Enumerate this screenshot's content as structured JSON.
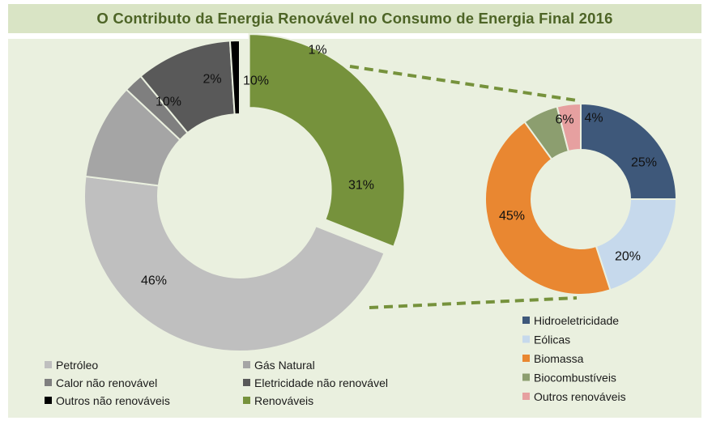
{
  "chart_data": [
    {
      "type": "pie",
      "title": "O Contributo da Energia Renovável no Consumo de Energia Final 2016",
      "categories": [
        "Renováveis",
        "Petróleo",
        "Gás Natural",
        "Calor não renovável",
        "Eletricidade não renovável",
        "Outros não renováveis"
      ],
      "values": [
        31,
        46,
        10,
        2,
        10,
        1
      ],
      "labels": [
        "31%",
        "46%",
        "10%",
        "2%",
        "10%",
        "1%"
      ],
      "colors": [
        "#76923c",
        "#bfbfbf",
        "#a5a5a5",
        "#7f7f7f",
        "#595959",
        "#000000"
      ],
      "legend": [
        {
          "name": "Petróleo",
          "color": "#bfbfbf"
        },
        {
          "name": "Gás Natural",
          "color": "#a5a5a5"
        },
        {
          "name": "Calor não renovável",
          "color": "#7f7f7f"
        },
        {
          "name": "Eletricidade não renovável",
          "color": "#595959"
        },
        {
          "name": "Outros não renováveis",
          "color": "#000000"
        },
        {
          "name": "Renováveis",
          "color": "#76923c"
        }
      ]
    },
    {
      "type": "pie",
      "categories": [
        "Hidroeletricidade",
        "Eólicas",
        "Biomassa",
        "Biocombustíveis",
        "Outros renováveis"
      ],
      "values": [
        25,
        20,
        45,
        6,
        4
      ],
      "labels": [
        "25%",
        "20%",
        "45%",
        "6%",
        "4%"
      ],
      "colors": [
        "#3e587a",
        "#c6d9ec",
        "#e98731",
        "#8c9e6f",
        "#e6a0a0"
      ],
      "legend": [
        {
          "name": "Hidroeletricidade",
          "color": "#3e587a"
        },
        {
          "name": "Eólicas",
          "color": "#c6d9ec"
        },
        {
          "name": "Biomassa",
          "color": "#e98731"
        },
        {
          "name": "Biocombustíveis",
          "color": "#8c9e6f"
        },
        {
          "name": "Outros renováveis",
          "color": "#e6a0a0"
        }
      ]
    }
  ],
  "colors": {
    "title_bg": "#d9e4c5",
    "plot_bg": "#eaf0df",
    "title_text": "#4d6426",
    "connector": "#76923c"
  }
}
